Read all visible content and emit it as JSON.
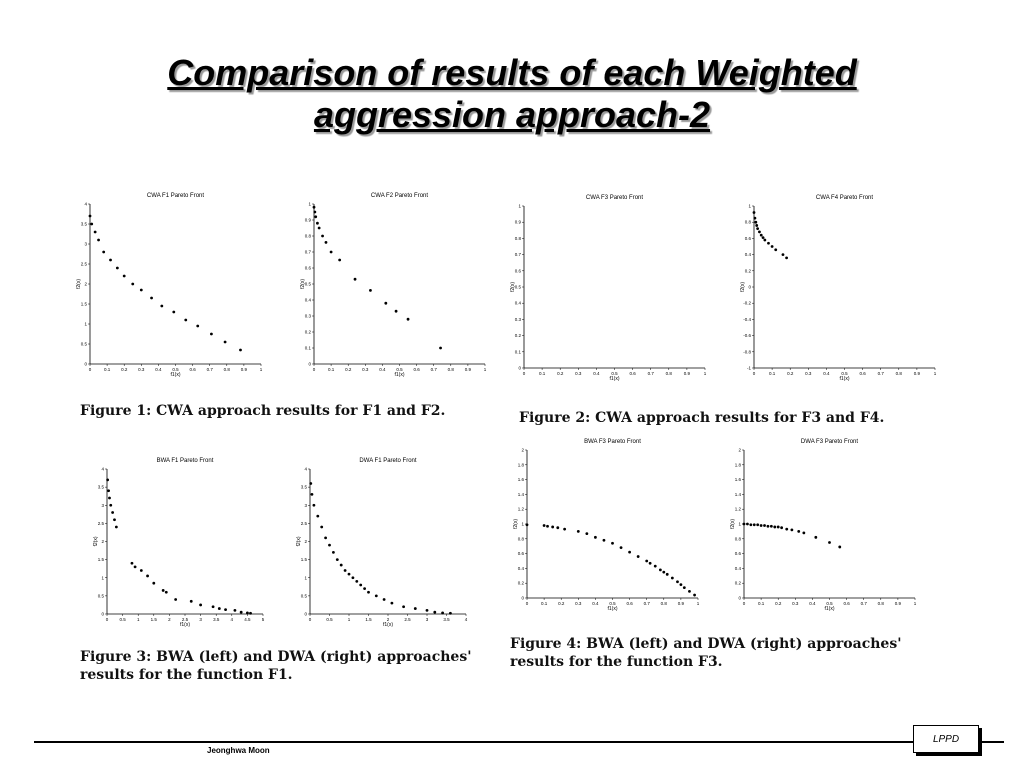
{
  "slide": {
    "title_line1": "Comparison of results of each Weighted",
    "title_line2": "aggression approach-2",
    "author": "Jeonghwa Moon",
    "logo": "LPPD"
  },
  "captions": {
    "fig1": "Figure 1: CWA approach results for F1 and F2.",
    "fig2": "Figure 2: CWA approach results for F3 and F4.",
    "fig3": "Figure 3: BWA (left) and DWA (right) approaches' results for the function F1.",
    "fig4": "Figure 4: BWA (left) and DWA (right) approaches' results for the function F3."
  },
  "chart_data": [
    {
      "id": "cwa_f1",
      "type": "scatter",
      "title": "CWA F1 Pareto Front",
      "xlabel": "f1(x)",
      "ylabel": "f2(x)",
      "xlim": [
        0,
        1
      ],
      "ylim": [
        0,
        4
      ],
      "xticks": [
        0,
        0.1,
        0.2,
        0.3,
        0.4,
        0.5,
        0.6,
        0.7,
        0.8,
        0.9,
        1
      ],
      "yticks": [
        0,
        0.5,
        1,
        1.5,
        2,
        2.5,
        3,
        3.5,
        4
      ],
      "x": [
        0,
        0.01,
        0.03,
        0.05,
        0.08,
        0.12,
        0.16,
        0.2,
        0.25,
        0.3,
        0.36,
        0.42,
        0.49,
        0.56,
        0.63,
        0.71,
        0.79,
        0.88
      ],
      "y": [
        3.7,
        3.5,
        3.3,
        3.1,
        2.8,
        2.6,
        2.4,
        2.2,
        2.0,
        1.85,
        1.65,
        1.45,
        1.3,
        1.1,
        0.95,
        0.75,
        0.55,
        0.35
      ]
    },
    {
      "id": "cwa_f2",
      "type": "scatter",
      "title": "CWA F2 Pareto Front",
      "xlabel": "f1(x)",
      "ylabel": "f2(x)",
      "xlim": [
        0,
        1
      ],
      "ylim": [
        0,
        1
      ],
      "xticks": [
        0,
        0.1,
        0.2,
        0.3,
        0.4,
        0.5,
        0.6,
        0.7,
        0.8,
        0.9,
        1
      ],
      "yticks": [
        0,
        0.1,
        0.2,
        0.3,
        0.4,
        0.5,
        0.6,
        0.7,
        0.8,
        0.9,
        1
      ],
      "x": [
        0,
        0.005,
        0.01,
        0.02,
        0.03,
        0.05,
        0.07,
        0.1,
        0.15,
        0.24,
        0.33,
        0.42,
        0.48,
        0.55,
        0.74
      ],
      "y": [
        0.98,
        0.95,
        0.92,
        0.88,
        0.85,
        0.8,
        0.76,
        0.7,
        0.65,
        0.53,
        0.46,
        0.38,
        0.33,
        0.28,
        0.1
      ]
    },
    {
      "id": "cwa_f3",
      "type": "scatter",
      "title": "CWA F3 Pareto Front",
      "xlabel": "f1(x)",
      "ylabel": "f2(x)",
      "xlim": [
        0,
        1
      ],
      "ylim": [
        0,
        1
      ],
      "xticks": [
        0,
        0.1,
        0.2,
        0.3,
        0.4,
        0.5,
        0.6,
        0.7,
        0.8,
        0.9,
        1
      ],
      "yticks": [
        0,
        0.1,
        0.2,
        0.3,
        0.4,
        0.5,
        0.6,
        0.7,
        0.8,
        0.9,
        1
      ],
      "x": [],
      "y": []
    },
    {
      "id": "cwa_f4",
      "type": "scatter",
      "title": "CWA F4 Pareto Front",
      "xlabel": "f1(x)",
      "ylabel": "f2(x)",
      "xlim": [
        0,
        1
      ],
      "ylim": [
        -1,
        1
      ],
      "xticks": [
        0,
        0.1,
        0.2,
        0.3,
        0.4,
        0.5,
        0.6,
        0.7,
        0.8,
        0.9,
        1
      ],
      "yticks": [
        -1,
        -0.8,
        -0.6,
        -0.4,
        -0.2,
        0,
        0.2,
        0.4,
        0.6,
        0.8,
        1
      ],
      "x": [
        0,
        0.005,
        0.01,
        0.015,
        0.02,
        0.03,
        0.04,
        0.05,
        0.06,
        0.08,
        0.1,
        0.12,
        0.16,
        0.18
      ],
      "y": [
        0.92,
        0.85,
        0.8,
        0.76,
        0.72,
        0.68,
        0.64,
        0.61,
        0.58,
        0.54,
        0.5,
        0.46,
        0.4,
        0.36
      ]
    },
    {
      "id": "bwa_f1",
      "type": "scatter",
      "title": "BWA F1 Pareto Front",
      "xlabel": "f1(x)",
      "ylabel": "f2(x)",
      "xlim": [
        0,
        5
      ],
      "ylim": [
        0,
        4
      ],
      "xticks": [
        0,
        0.5,
        1,
        1.5,
        2,
        2.5,
        3,
        3.5,
        4,
        4.5,
        5
      ],
      "yticks": [
        0,
        0.5,
        1,
        1.5,
        2,
        2.5,
        3,
        3.5,
        4
      ],
      "x": [
        0.02,
        0.05,
        0.08,
        0.12,
        0.18,
        0.24,
        0.3,
        0.8,
        0.9,
        1.1,
        1.3,
        1.5,
        1.8,
        1.9,
        2.2,
        2.7,
        3.0,
        3.4,
        3.6,
        3.8,
        4.1,
        4.3,
        4.5,
        4.6
      ],
      "y": [
        3.7,
        3.4,
        3.2,
        3.0,
        2.8,
        2.6,
        2.4,
        1.4,
        1.3,
        1.2,
        1.05,
        0.85,
        0.65,
        0.6,
        0.4,
        0.35,
        0.25,
        0.2,
        0.15,
        0.12,
        0.1,
        0.05,
        0.03,
        0.02
      ]
    },
    {
      "id": "dwa_f1",
      "type": "scatter",
      "title": "DWA F1 Pareto Front",
      "xlabel": "f1(x)",
      "ylabel": "f2(x)",
      "xlim": [
        0,
        4
      ],
      "ylim": [
        0,
        4
      ],
      "xticks": [
        0,
        0.5,
        1,
        1.5,
        2,
        2.5,
        3,
        3.5,
        4
      ],
      "yticks": [
        0,
        0.5,
        1,
        1.5,
        2,
        2.5,
        3,
        3.5,
        4
      ],
      "x": [
        0.02,
        0.05,
        0.1,
        0.2,
        0.3,
        0.4,
        0.5,
        0.6,
        0.7,
        0.8,
        0.9,
        1.0,
        1.1,
        1.2,
        1.3,
        1.4,
        1.5,
        1.7,
        1.9,
        2.1,
        2.4,
        2.7,
        3.0,
        3.2,
        3.4,
        3.6
      ],
      "y": [
        3.6,
        3.3,
        3.0,
        2.7,
        2.4,
        2.1,
        1.9,
        1.7,
        1.5,
        1.35,
        1.2,
        1.1,
        1.0,
        0.9,
        0.8,
        0.7,
        0.6,
        0.5,
        0.4,
        0.3,
        0.2,
        0.15,
        0.1,
        0.05,
        0.03,
        0.02
      ]
    },
    {
      "id": "bwa_f3",
      "type": "scatter",
      "title": "BWA F3 Pareto Front",
      "xlabel": "f1(x)",
      "ylabel": "f2(x)",
      "xlim": [
        0,
        1
      ],
      "ylim": [
        0,
        2
      ],
      "xticks": [
        0,
        0.1,
        0.2,
        0.3,
        0.4,
        0.5,
        0.6,
        0.7,
        0.8,
        0.9,
        1
      ],
      "yticks": [
        0,
        0.2,
        0.4,
        0.6,
        0.8,
        1,
        1.2,
        1.4,
        1.6,
        1.8,
        2
      ],
      "x": [
        0,
        0.1,
        0.12,
        0.15,
        0.18,
        0.22,
        0.3,
        0.35,
        0.4,
        0.45,
        0.5,
        0.55,
        0.6,
        0.65,
        0.7,
        0.72,
        0.75,
        0.78,
        0.8,
        0.82,
        0.85,
        0.88,
        0.9,
        0.92,
        0.95,
        0.98
      ],
      "y": [
        0.99,
        0.98,
        0.97,
        0.96,
        0.95,
        0.93,
        0.9,
        0.87,
        0.82,
        0.78,
        0.74,
        0.68,
        0.62,
        0.56,
        0.5,
        0.47,
        0.43,
        0.38,
        0.35,
        0.32,
        0.27,
        0.22,
        0.18,
        0.14,
        0.09,
        0.04
      ]
    },
    {
      "id": "dwa_f3",
      "type": "scatter",
      "title": "DWA F3 Pareto Front",
      "xlabel": "f1(x)",
      "ylabel": "f2(x)",
      "xlim": [
        0,
        1
      ],
      "ylim": [
        0,
        2
      ],
      "xticks": [
        0,
        0.1,
        0.2,
        0.3,
        0.4,
        0.5,
        0.6,
        0.7,
        0.8,
        0.9,
        1
      ],
      "yticks": [
        0,
        0.2,
        0.4,
        0.6,
        0.8,
        1,
        1.2,
        1.4,
        1.6,
        1.8,
        2
      ],
      "x": [
        0,
        0.02,
        0.04,
        0.06,
        0.08,
        0.1,
        0.12,
        0.14,
        0.16,
        0.18,
        0.2,
        0.22,
        0.25,
        0.28,
        0.32,
        0.35,
        0.42,
        0.5,
        0.56
      ],
      "y": [
        1.0,
        1.0,
        0.99,
        0.99,
        0.99,
        0.98,
        0.98,
        0.97,
        0.97,
        0.96,
        0.96,
        0.95,
        0.93,
        0.92,
        0.9,
        0.88,
        0.82,
        0.75,
        0.69
      ]
    }
  ]
}
